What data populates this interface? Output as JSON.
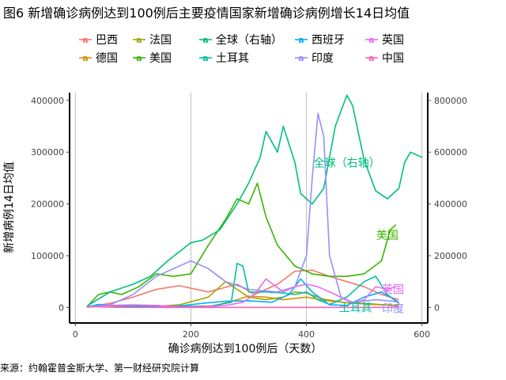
{
  "chart_data": {
    "type": "line",
    "title": "图6 新增确诊病例达到100例后主要疫情国家新增确诊病例增长14日均值",
    "xlabel": "确诊病例达到100例后（天数）",
    "ylabel": "新增病例14日均值",
    "source": "来源：约翰霍普金斯大学、第一财经研究院计算",
    "xlim": [
      -10,
      610
    ],
    "xticks": [
      0,
      200,
      400,
      600
    ],
    "ylim": [
      -30000,
      415000
    ],
    "yticks": [
      0,
      100000,
      200000,
      300000,
      400000
    ],
    "y2lim": [
      -60000,
      830000
    ],
    "y2ticks": [
      0,
      200000,
      400000,
      600000,
      800000
    ],
    "grid": "vertical",
    "legend_position": "top",
    "series": [
      {
        "name": "巴西",
        "color": "#F8766D",
        "axis": "left",
        "x": [
          20,
          60,
          100,
          140,
          180,
          230,
          280,
          310,
          350,
          380,
          410,
          440,
          470,
          500,
          530,
          560
        ],
        "y": [
          1000,
          8000,
          20000,
          35000,
          42000,
          30000,
          45000,
          25000,
          45000,
          70000,
          72000,
          60000,
          50000,
          40000,
          25000,
          15000
        ]
      },
      {
        "name": "德国",
        "color": "#D89000",
        "axis": "left",
        "x": [
          20,
          40,
          80,
          120,
          180,
          240,
          280,
          300,
          330,
          360,
          400,
          430,
          470,
          510,
          560
        ],
        "y": [
          1000,
          4000,
          3000,
          2000,
          2000,
          3000,
          15000,
          22000,
          20000,
          15000,
          20000,
          14000,
          9000,
          6000,
          4000
        ]
      },
      {
        "name": "法国",
        "color": "#A3A500",
        "axis": "left",
        "x": [
          20,
          40,
          80,
          120,
          180,
          230,
          260,
          280,
          300,
          330,
          360,
          380,
          400,
          430,
          470,
          500,
          560
        ],
        "y": [
          1000,
          4000,
          2000,
          1000,
          5000,
          20000,
          50000,
          35000,
          20000,
          15000,
          20000,
          30000,
          28000,
          16000,
          9000,
          8000,
          3000
        ]
      },
      {
        "name": "美国",
        "color": "#39B600",
        "axis": "left",
        "x": [
          20,
          40,
          60,
          80,
          110,
          140,
          170,
          200,
          230,
          260,
          280,
          300,
          315,
          330,
          350,
          380,
          410,
          440,
          470,
          500,
          530,
          545,
          555
        ],
        "y": [
          1000,
          25000,
          30000,
          25000,
          40000,
          65000,
          60000,
          65000,
          120000,
          170000,
          210000,
          200000,
          240000,
          175000,
          120000,
          80000,
          65000,
          60000,
          60000,
          65000,
          90000,
          150000,
          160000
        ]
      },
      {
        "name": "全球（右轴）",
        "color": "#00BF7D",
        "axis": "right",
        "x": [
          20,
          60,
          100,
          130,
          160,
          200,
          220,
          250,
          280,
          300,
          320,
          330,
          350,
          360,
          380,
          390,
          410,
          430,
          450,
          470,
          480,
          500,
          520,
          540,
          560,
          570,
          580,
          600
        ],
        "y": [
          5000,
          60000,
          90000,
          120000,
          180000,
          250000,
          260000,
          300000,
          400000,
          480000,
          580000,
          680000,
          600000,
          700000,
          560000,
          440000,
          400000,
          460000,
          700000,
          820000,
          780000,
          570000,
          450000,
          420000,
          460000,
          560000,
          600000,
          580000
        ]
      },
      {
        "name": "土耳其",
        "color": "#00C1A3",
        "axis": "left",
        "x": [
          20,
          60,
          120,
          180,
          230,
          270,
          280,
          290,
          300,
          330,
          360,
          380,
          400,
          420,
          440,
          470,
          500,
          520,
          540,
          560
        ],
        "y": [
          500,
          4000,
          3000,
          2000,
          2000,
          10000,
          85000,
          80000,
          30000,
          30000,
          28000,
          25000,
          30000,
          15000,
          6000,
          20000,
          50000,
          60000,
          25000,
          8000
        ]
      },
      {
        "name": "西班牙",
        "color": "#00B0F6",
        "axis": "left",
        "x": [
          20,
          40,
          70,
          100,
          140,
          180,
          220,
          260,
          300,
          340,
          370,
          390,
          410,
          440,
          470,
          500,
          530,
          560
        ],
        "y": [
          1000,
          6000,
          4000,
          1000,
          1000,
          3000,
          8000,
          12000,
          13000,
          10000,
          25000,
          55000,
          30000,
          5000,
          4000,
          20000,
          30000,
          10000
        ]
      },
      {
        "name": "印度",
        "color": "#9590FF",
        "axis": "left",
        "x": [
          20,
          60,
          100,
          140,
          170,
          200,
          230,
          260,
          300,
          350,
          380,
          400,
          410,
          420,
          430,
          440,
          460,
          480,
          520,
          550,
          560
        ],
        "y": [
          1000,
          5000,
          25000,
          60000,
          75000,
          90000,
          75000,
          50000,
          35000,
          30000,
          40000,
          100000,
          250000,
          375000,
          330000,
          100000,
          20000,
          10000,
          15000,
          12000,
          10000
        ]
      },
      {
        "name": "英国",
        "color": "#E76BF3",
        "axis": "left",
        "x": [
          20,
          60,
          100,
          140,
          180,
          220,
          260,
          290,
          310,
          330,
          360,
          380,
          400,
          420,
          450,
          480,
          500,
          520,
          540,
          555
        ],
        "y": [
          500,
          4000,
          5000,
          4000,
          1000,
          1000,
          4000,
          10000,
          25000,
          55000,
          30000,
          40000,
          45000,
          40000,
          25000,
          8000,
          15000,
          40000,
          35000,
          40000
        ]
      },
      {
        "name": "中国",
        "color": "#FF62BC",
        "axis": "left",
        "x": [
          20,
          60,
          100,
          150,
          200,
          300,
          400,
          500,
          560
        ],
        "y": [
          2000,
          500,
          200,
          100,
          100,
          100,
          100,
          100,
          100
        ]
      }
    ],
    "end_labels": [
      {
        "text": "全球（右轴）",
        "series": "全球（右轴）",
        "x": 470,
        "axis": "right",
        "y": 560000
      },
      {
        "text": "美国",
        "series": "美国",
        "x": 540,
        "axis": "left",
        "y": 140000
      },
      {
        "text": "英国",
        "series": "英国",
        "x": 550,
        "axis": "left",
        "y": 35000
      },
      {
        "text": "土耳其",
        "series": "土耳其",
        "x": 485,
        "axis": "left",
        "y": 0
      },
      {
        "text": "印度",
        "series": "印度",
        "x": 550,
        "axis": "left",
        "y": -2000
      }
    ]
  }
}
